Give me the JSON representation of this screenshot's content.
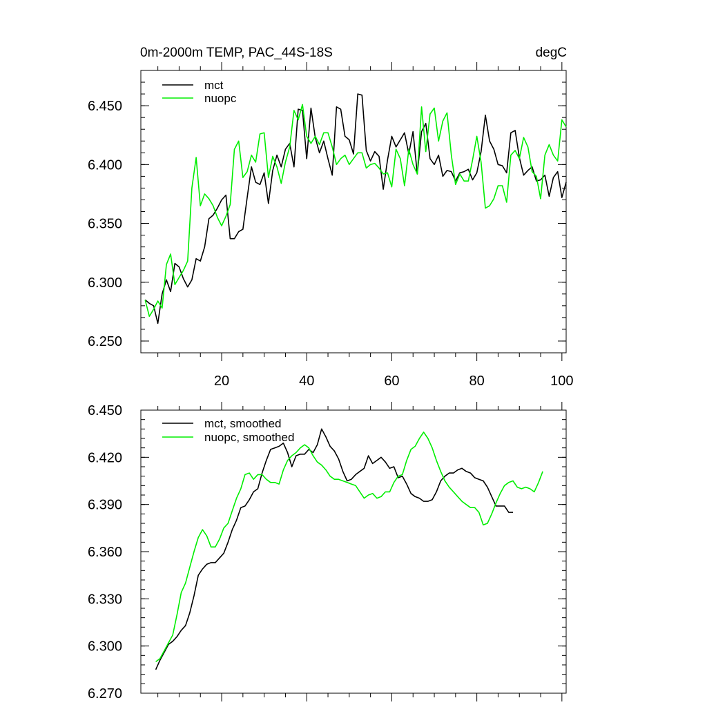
{
  "chart_data": [
    {
      "type": "line",
      "title_left": "0m-2000m TEMP, PAC_44S-18S",
      "title_right": "degC",
      "xlim": [
        1,
        101
      ],
      "ylim": [
        6.24,
        6.48
      ],
      "yticks": [
        6.25,
        6.3,
        6.35,
        6.4,
        6.45
      ],
      "ytick_labels": [
        "6.250",
        "6.300",
        "6.350",
        "6.400",
        "6.450"
      ],
      "xticks": [
        20,
        40,
        60,
        80,
        100
      ],
      "xtick_labels": [
        "20",
        "40",
        "60",
        "80",
        "100"
      ],
      "legend": [
        "mct",
        "nuopc"
      ],
      "series": [
        {
          "name": "mct",
          "color": "#000000",
          "x_start": 2,
          "values": [
            6.285,
            6.282,
            6.28,
            6.265,
            6.29,
            6.302,
            6.292,
            6.316,
            6.313,
            6.303,
            6.296,
            6.302,
            6.32,
            6.318,
            6.33,
            6.354,
            6.357,
            6.363,
            6.37,
            6.374,
            6.337,
            6.337,
            6.343,
            6.345,
            6.372,
            6.398,
            6.385,
            6.383,
            6.393,
            6.367,
            6.395,
            6.408,
            6.398,
            6.413,
            6.418,
            6.398,
            6.447,
            6.446,
            6.405,
            6.448,
            6.423,
            6.41,
            6.42,
            6.405,
            6.391,
            6.449,
            6.447,
            6.424,
            6.421,
            6.409,
            6.46,
            6.459,
            6.412,
            6.403,
            6.411,
            6.407,
            6.379,
            6.404,
            6.424,
            6.415,
            6.421,
            6.427,
            6.409,
            6.428,
            6.392,
            6.428,
            6.435,
            6.405,
            6.4,
            6.408,
            6.39,
            6.395,
            6.394,
            6.386,
            6.393,
            6.394,
            6.396,
            6.387,
            6.393,
            6.411,
            6.442,
            6.42,
            6.413,
            6.4,
            6.399,
            6.393,
            6.427,
            6.429,
            6.406,
            6.391,
            6.395,
            6.398,
            6.386,
            6.387,
            6.391,
            6.373,
            6.389,
            6.394,
            6.372,
            6.385
          ]
        },
        {
          "name": "nuopc",
          "color": "#00ee00",
          "x_start": 2,
          "values": [
            6.285,
            6.271,
            6.277,
            6.284,
            6.278,
            6.315,
            6.324,
            6.298,
            6.304,
            6.31,
            6.318,
            6.38,
            6.406,
            6.365,
            6.375,
            6.371,
            6.365,
            6.355,
            6.348,
            6.356,
            6.366,
            6.413,
            6.42,
            6.389,
            6.394,
            6.408,
            6.402,
            6.426,
            6.427,
            6.389,
            6.407,
            6.398,
            6.384,
            6.402,
            6.415,
            6.446,
            6.438,
            6.451,
            6.424,
            6.418,
            6.424,
            6.417,
            6.427,
            6.427,
            6.415,
            6.4,
            6.405,
            6.408,
            6.4,
            6.405,
            6.41,
            6.41,
            6.397,
            6.4,
            6.401,
            6.397,
            6.392,
            6.393,
            6.381,
            6.413,
            6.405,
            6.382,
            6.413,
            6.4,
            6.392,
            6.449,
            6.411,
            6.443,
            6.448,
            6.42,
            6.437,
            6.444,
            6.408,
            6.383,
            6.392,
            6.386,
            6.386,
            6.404,
            6.424,
            6.402,
            6.363,
            6.365,
            6.371,
            6.382,
            6.382,
            6.368,
            6.408,
            6.412,
            6.405,
            6.423,
            6.415,
            6.394,
            6.39,
            6.371,
            6.408,
            6.417,
            6.408,
            6.403,
            6.438,
            6.432
          ]
        }
      ]
    },
    {
      "type": "line",
      "xlim": [
        1,
        101
      ],
      "ylim": [
        6.27,
        6.45
      ],
      "yticks": [
        6.27,
        6.3,
        6.33,
        6.36,
        6.39,
        6.42,
        6.45
      ],
      "ytick_labels": [
        "6.270",
        "6.300",
        "6.330",
        "6.360",
        "6.390",
        "6.420",
        "6.450"
      ],
      "xticks": [
        20,
        40,
        60,
        80,
        100
      ],
      "legend": [
        "mct, smoothed",
        "nuopc, smoothed"
      ],
      "series": [
        {
          "name": "mct, smoothed",
          "color": "#000000",
          "x_start": 4.5,
          "values": [
            6.285,
            6.291,
            6.296,
            6.301,
            6.303,
            6.306,
            6.31,
            6.313,
            6.321,
            6.332,
            6.345,
            6.349,
            6.352,
            6.353,
            6.353,
            6.356,
            6.359,
            6.366,
            6.374,
            6.38,
            6.388,
            6.389,
            6.393,
            6.398,
            6.4,
            6.41,
            6.418,
            6.425,
            6.426,
            6.427,
            6.429,
            6.423,
            6.414,
            6.421,
            6.422,
            6.422,
            6.425,
            6.423,
            6.428,
            6.438,
            6.433,
            6.427,
            6.424,
            6.419,
            6.411,
            6.405,
            6.406,
            6.409,
            6.411,
            6.413,
            6.421,
            6.416,
            6.418,
            6.42,
            6.417,
            6.413,
            6.414,
            6.407,
            6.408,
            6.403,
            6.397,
            6.395,
            6.394,
            6.392,
            6.392,
            6.393,
            6.398,
            6.405,
            6.408,
            6.41,
            6.41,
            6.412,
            6.413,
            6.411,
            6.41,
            6.407,
            6.406,
            6.405,
            6.401,
            6.395,
            6.389,
            6.389,
            6.389,
            6.385,
            6.385
          ]
        },
        {
          "name": "nuopc, smoothed",
          "color": "#00ee00",
          "x_start": 4.5,
          "values": [
            6.29,
            6.292,
            6.297,
            6.302,
            6.307,
            6.32,
            6.334,
            6.34,
            6.35,
            6.36,
            6.369,
            6.374,
            6.37,
            6.363,
            6.363,
            6.368,
            6.375,
            6.378,
            6.386,
            6.394,
            6.4,
            6.409,
            6.41,
            6.406,
            6.409,
            6.409,
            6.406,
            6.404,
            6.404,
            6.403,
            6.412,
            6.418,
            6.421,
            6.423,
            6.426,
            6.428,
            6.426,
            6.421,
            6.417,
            6.415,
            6.412,
            6.408,
            6.406,
            6.406,
            6.405,
            6.404,
            6.403,
            6.402,
            6.398,
            6.394,
            6.396,
            6.397,
            6.394,
            6.395,
            6.398,
            6.398,
            6.404,
            6.408,
            6.409,
            6.418,
            6.425,
            6.427,
            6.432,
            6.436,
            6.432,
            6.426,
            6.418,
            6.411,
            6.405,
            6.401,
            6.398,
            6.395,
            6.392,
            6.39,
            6.388,
            6.388,
            6.385,
            6.377,
            6.378,
            6.384,
            6.391,
            6.397,
            6.402,
            6.404,
            6.405,
            6.401,
            6.4,
            6.401,
            6.4,
            6.398,
            6.404,
            6.411
          ]
        }
      ]
    }
  ]
}
